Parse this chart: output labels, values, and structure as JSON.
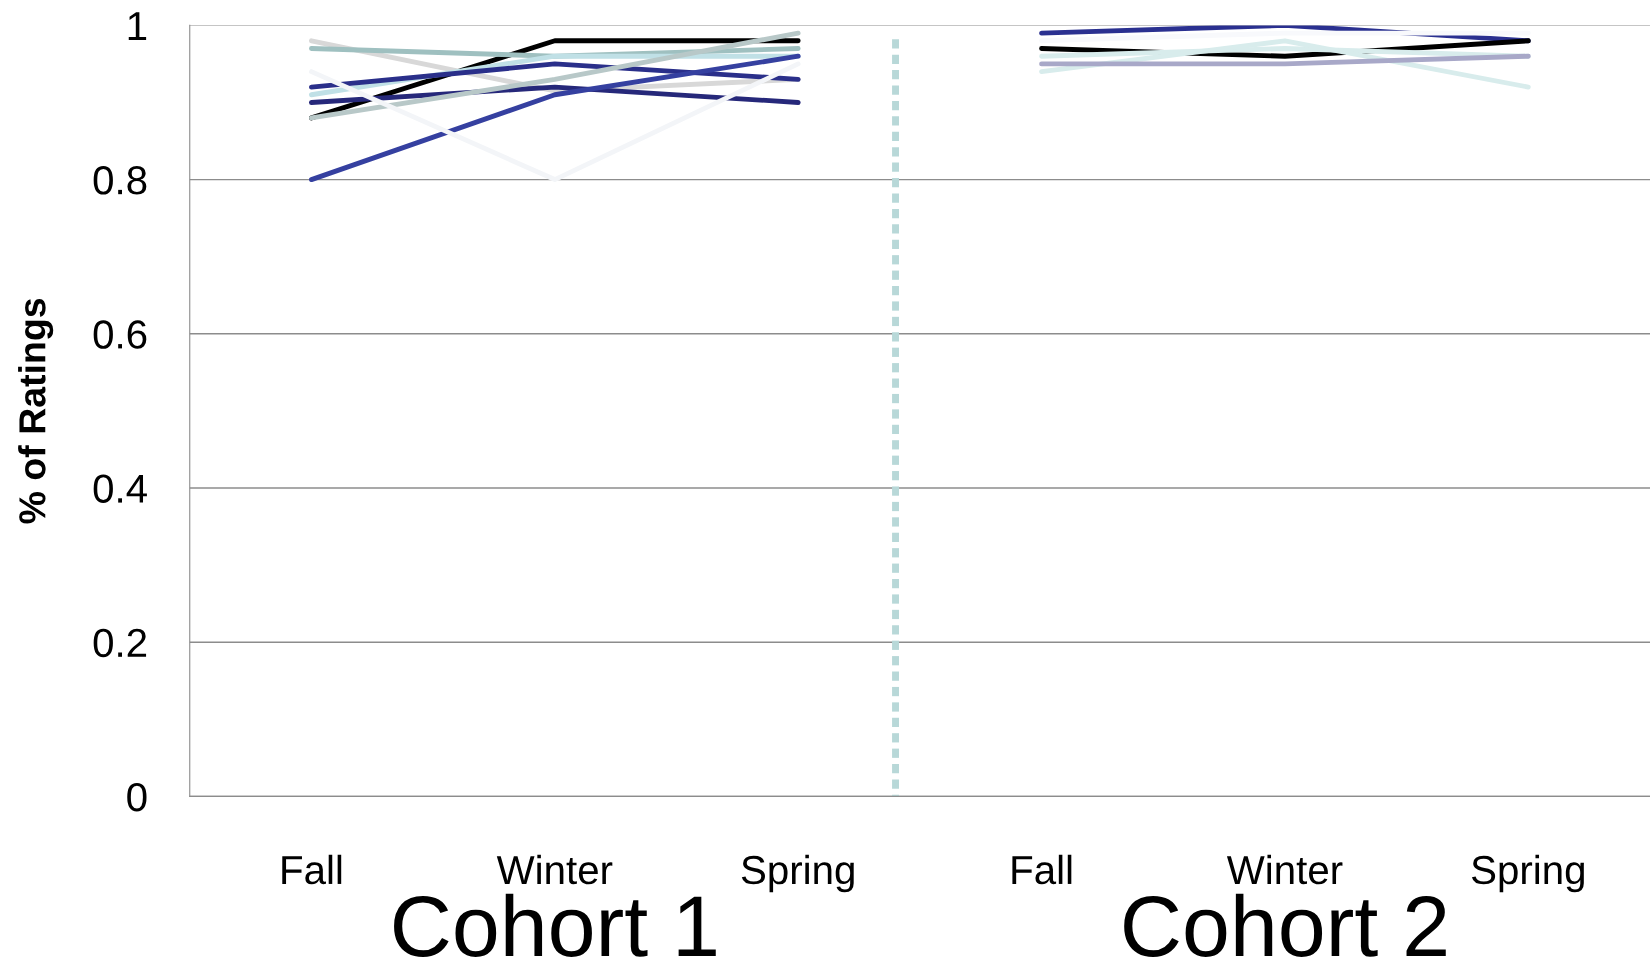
{
  "chart_data": {
    "type": "line",
    "ylabel": "% of Ratings",
    "categories": [
      "Fall",
      "Winter",
      "Spring",
      "Fall",
      "Winter",
      "Spring"
    ],
    "series": [
      {
        "color": "#000000",
        "values": [
          0.88,
          0.98,
          0.98,
          null,
          null,
          null
        ]
      },
      {
        "color": "#d8d8d8",
        "values": [
          0.98,
          0.915,
          0.93,
          null,
          null,
          null
        ]
      },
      {
        "color": "#9fc0c0",
        "values": [
          0.97,
          0.96,
          0.97,
          null,
          null,
          null
        ]
      },
      {
        "color": "#c0e0e6",
        "values": [
          0.91,
          0.96,
          0.96,
          null,
          null,
          null
        ]
      },
      {
        "color": "#2a2f8a",
        "values": [
          0.92,
          0.95,
          0.93,
          null,
          null,
          null
        ]
      },
      {
        "color": "#26287a",
        "values": [
          0.9,
          0.92,
          0.9,
          null,
          null,
          null
        ]
      },
      {
        "color": "#b8c8c8",
        "values": [
          0.88,
          0.93,
          0.99,
          null,
          null,
          null
        ]
      },
      {
        "color": "#3540a0",
        "values": [
          0.8,
          0.91,
          0.96,
          null,
          null,
          null
        ]
      },
      {
        "color": "#f3f5f8",
        "values": [
          0.94,
          0.8,
          0.95,
          null,
          null,
          null
        ]
      },
      {
        "color": "#2a3090",
        "values": [
          null,
          null,
          null,
          0.99,
          1.0,
          0.98
        ]
      },
      {
        "color": "#f8f9fc",
        "values": [
          null,
          null,
          null,
          0.98,
          0.99,
          0.99
        ]
      },
      {
        "color": "#000000",
        "values": [
          null,
          null,
          null,
          0.97,
          0.96,
          0.98
        ]
      },
      {
        "color": "#d8ecec",
        "values": [
          null,
          null,
          null,
          0.96,
          0.97,
          0.96
        ]
      },
      {
        "color": "#d8ecec",
        "values": [
          null,
          null,
          null,
          0.94,
          0.98,
          0.92
        ]
      },
      {
        "color": "#a8a8c8",
        "values": [
          null,
          null,
          null,
          0.95,
          0.95,
          0.96
        ]
      }
    ],
    "ylim": [
      0,
      1
    ],
    "yticks": [
      0,
      0.2,
      0.4,
      0.6,
      0.8,
      1
    ],
    "annotations": [
      "Cohort 1",
      "Cohort 2"
    ],
    "grid": "y",
    "legend": false,
    "marker": "none",
    "line_style": "solid"
  }
}
